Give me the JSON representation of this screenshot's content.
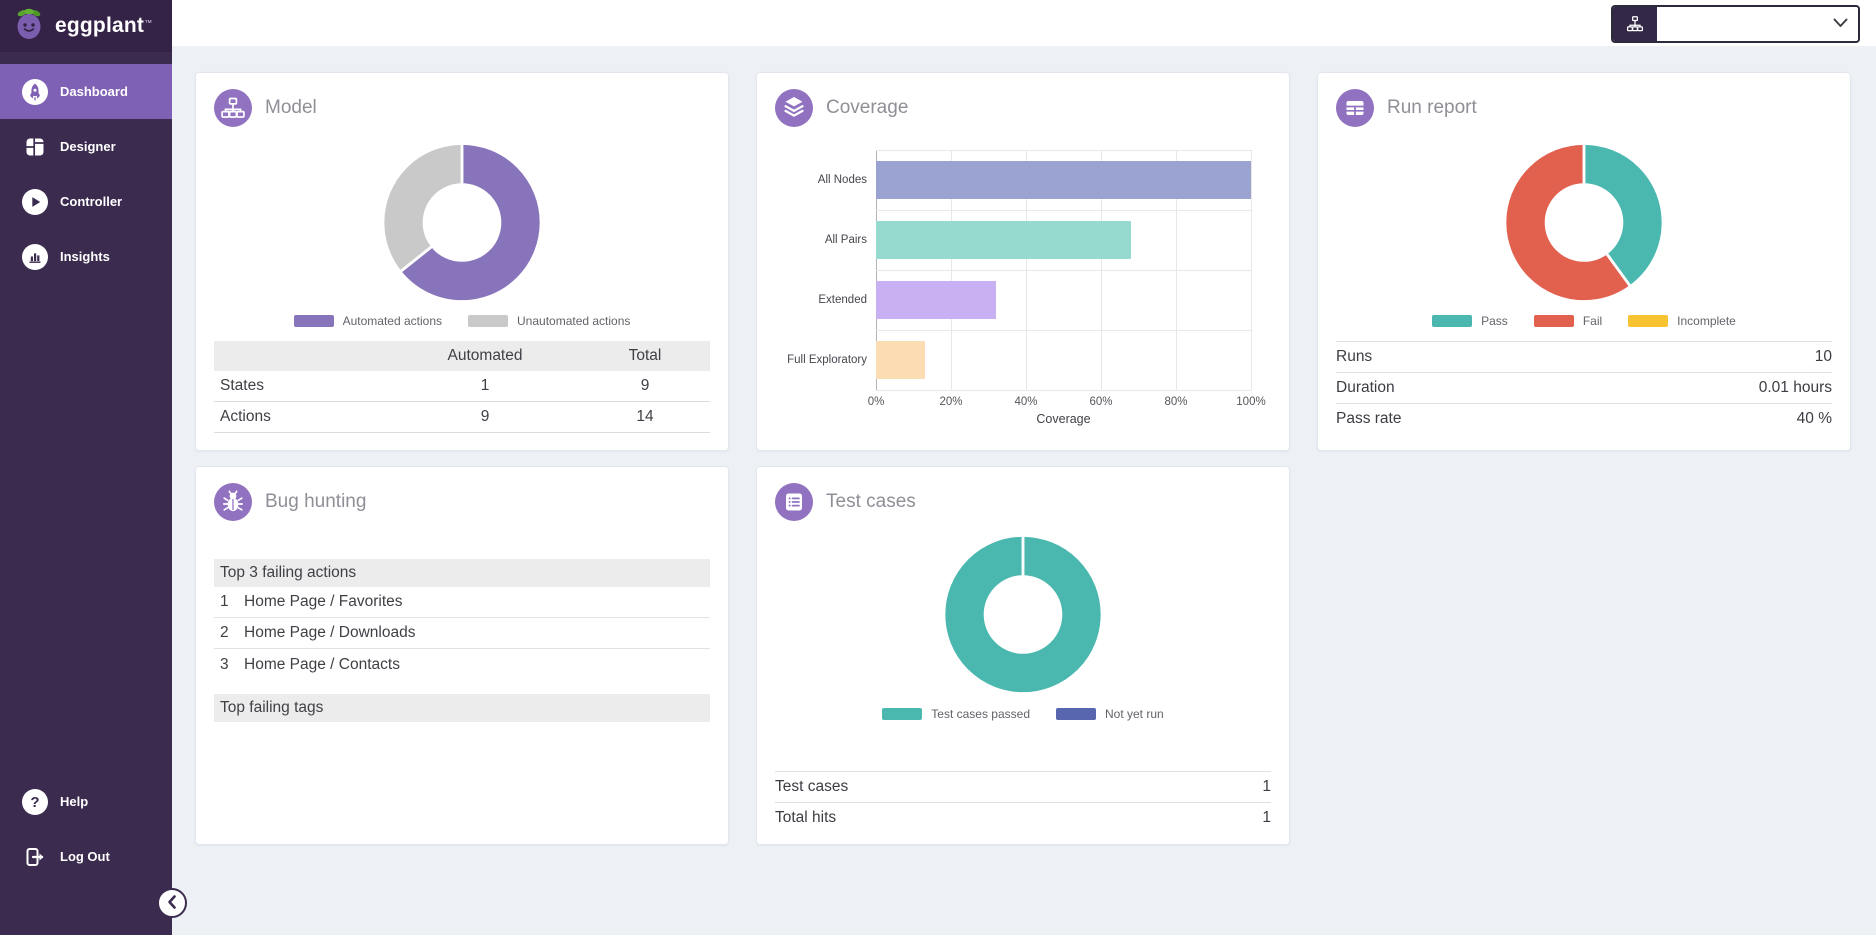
{
  "sidebar": {
    "logo_text": "eggplant",
    "logo_tm": "™",
    "items": [
      {
        "label": "Dashboard",
        "icon": "rocket-icon",
        "active": true
      },
      {
        "label": "Designer",
        "icon": "designer-grid-icon",
        "active": false
      },
      {
        "label": "Controller",
        "icon": "play-icon",
        "active": false
      },
      {
        "label": "Insights",
        "icon": "bar-chart-icon",
        "active": false
      }
    ],
    "footer_items": [
      {
        "label": "Help",
        "icon": "question-icon"
      },
      {
        "label": "Log Out",
        "icon": "logout-door-icon"
      }
    ]
  },
  "topbar": {
    "suite_selector": {
      "value": "",
      "icon": "sitemap-icon"
    }
  },
  "colors": {
    "sidebar": "#3b2b4f",
    "active_nav": "#7e60b5",
    "icon_circle": "#9172c0",
    "automated_purple": "#8874ba",
    "unautomated_gray": "#c9c9c9",
    "pass_teal": "#4ab8af",
    "fail_red": "#e2604e",
    "incomplete_yellow": "#f7c331",
    "not_yet_run_indigo": "#5766af"
  },
  "cards": {
    "model": {
      "title": "Model",
      "chart_data": {
        "type": "pie",
        "slices": [
          {
            "label": "Automated actions",
            "value": 9,
            "color": "#8874ba"
          },
          {
            "label": "Unautomated actions",
            "value": 5,
            "color": "#c9c9c9"
          }
        ]
      },
      "table": {
        "headers": [
          "",
          "Automated",
          "Total"
        ],
        "rows": [
          [
            "States",
            "1",
            "9"
          ],
          [
            "Actions",
            "9",
            "14"
          ]
        ]
      }
    },
    "coverage": {
      "title": "Coverage",
      "chart_data": {
        "type": "bar",
        "orientation": "horizontal",
        "categories": [
          "All Nodes",
          "All Pairs",
          "Extended",
          "Full Exploratory"
        ],
        "values": [
          100,
          68,
          32,
          13
        ],
        "colors": [
          "#9ba3d3",
          "#96d9ce",
          "#c8b0f3",
          "#fcdcb3"
        ],
        "xlabel": "Coverage",
        "xticks": [
          "0%",
          "20%",
          "40%",
          "60%",
          "80%",
          "100%"
        ],
        "xlim": [
          0,
          100
        ],
        "grid": true
      }
    },
    "run_report": {
      "title": "Run report",
      "chart_data": {
        "type": "pie",
        "slices": [
          {
            "label": "Pass",
            "value": 4,
            "color": "#4ab8af"
          },
          {
            "label": "Fail",
            "value": 6,
            "color": "#e2604e"
          },
          {
            "label": "Incomplete",
            "value": 0,
            "color": "#f7c331"
          }
        ]
      },
      "stats": [
        [
          "Runs",
          "10"
        ],
        [
          "Duration",
          "0.01 hours"
        ],
        [
          "Pass rate",
          "40 %"
        ]
      ]
    },
    "bug_hunting": {
      "title": "Bug hunting",
      "sections": [
        {
          "header": "Top 3 failing actions",
          "rows": [
            [
              "1",
              "Home Page / Favorites"
            ],
            [
              "2",
              "Home Page / Downloads"
            ],
            [
              "3",
              "Home Page / Contacts"
            ]
          ]
        },
        {
          "header": "Top failing tags",
          "rows": []
        }
      ]
    },
    "test_cases": {
      "title": "Test cases",
      "chart_data": {
        "type": "pie",
        "slices": [
          {
            "label": "Test cases passed",
            "value": 1,
            "color": "#4ab8af"
          },
          {
            "label": "Not yet run",
            "value": 0,
            "color": "#5766af"
          }
        ]
      },
      "stats": [
        [
          "Test cases",
          "1"
        ],
        [
          "Total hits",
          "1"
        ]
      ]
    }
  }
}
